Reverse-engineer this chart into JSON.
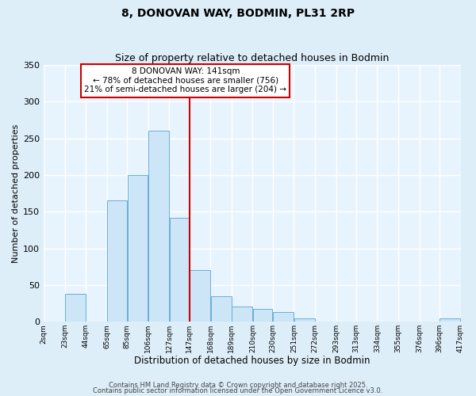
{
  "title": "8, DONOVAN WAY, BODMIN, PL31 2RP",
  "subtitle": "Size of property relative to detached houses in Bodmin",
  "xlabel": "Distribution of detached houses by size in Bodmin",
  "ylabel": "Number of detached properties",
  "bar_edges": [
    2,
    23,
    44,
    65,
    85,
    106,
    127,
    147,
    168,
    189,
    210,
    230,
    251,
    272,
    293,
    313,
    334,
    355,
    376,
    396,
    417
  ],
  "bar_heights": [
    0,
    38,
    0,
    165,
    200,
    260,
    142,
    70,
    35,
    21,
    17,
    13,
    5,
    0,
    0,
    0,
    0,
    0,
    0,
    5
  ],
  "bar_color": "#cce5f7",
  "bar_edge_color": "#6aaed6",
  "vline_x": 147,
  "vline_color": "#cc0000",
  "ylim": [
    0,
    350
  ],
  "yticks": [
    0,
    50,
    100,
    150,
    200,
    250,
    300,
    350
  ],
  "annotation_title": "8 DONOVAN WAY: 141sqm",
  "annotation_line2": "← 78% of detached houses are smaller (756)",
  "annotation_line3": "21% of semi-detached houses are larger (204) →",
  "annotation_box_color": "#cc0000",
  "footnote1": "Contains HM Land Registry data © Crown copyright and database right 2025.",
  "footnote2": "Contains public sector information licensed under the Open Government Licence v3.0.",
  "background_color": "#ddeef9",
  "plot_bg_color": "#e8f4fd",
  "grid_color": "#ffffff",
  "tick_labels": [
    "2sqm",
    "23sqm",
    "44sqm",
    "65sqm",
    "85sqm",
    "106sqm",
    "127sqm",
    "147sqm",
    "168sqm",
    "189sqm",
    "210sqm",
    "230sqm",
    "251sqm",
    "272sqm",
    "293sqm",
    "313sqm",
    "334sqm",
    "355sqm",
    "376sqm",
    "396sqm",
    "417sqm"
  ]
}
